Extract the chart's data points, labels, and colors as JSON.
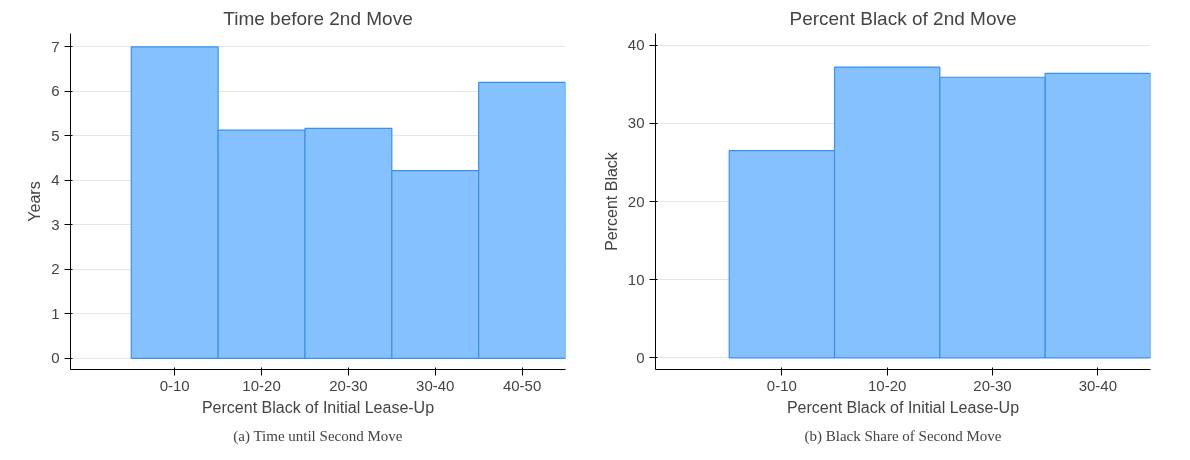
{
  "chart_data": [
    {
      "type": "bar",
      "title": "Time before 2nd Move",
      "xlabel": "Percent Black of Initial Lease-Up",
      "ylabel": "Years",
      "categories": [
        "0-10",
        "10-20",
        "20-30",
        "30-40",
        "40-50"
      ],
      "series": [
        {
          "color": "#85c1ff",
          "values": [
            7.0,
            5.13,
            5.17,
            4.22,
            6.2
          ]
        }
      ],
      "ylim": [
        -0.25,
        7.3
      ],
      "yticks": [
        0,
        1,
        2,
        3,
        4,
        5,
        6,
        7
      ],
      "grid": "y",
      "annotations": [
        "(a) Time until Second Move"
      ]
    },
    {
      "type": "bar",
      "title": "Percent Black of 2nd Move",
      "xlabel": "Percent Black of Initial Lease-Up",
      "ylabel": "Percent Black",
      "categories": [
        "0-10",
        "10-20",
        "20-30",
        "30-40"
      ],
      "series": [
        {
          "color": "#85c1ff",
          "values": [
            26.5,
            37.2,
            35.9,
            36.4
          ]
        }
      ],
      "ylim": [
        -1.5,
        41.5
      ],
      "yticks": [
        0,
        10,
        20,
        30,
        40
      ],
      "grid": "y",
      "annotations": [
        "(b) Black Share of Second Move"
      ]
    }
  ]
}
